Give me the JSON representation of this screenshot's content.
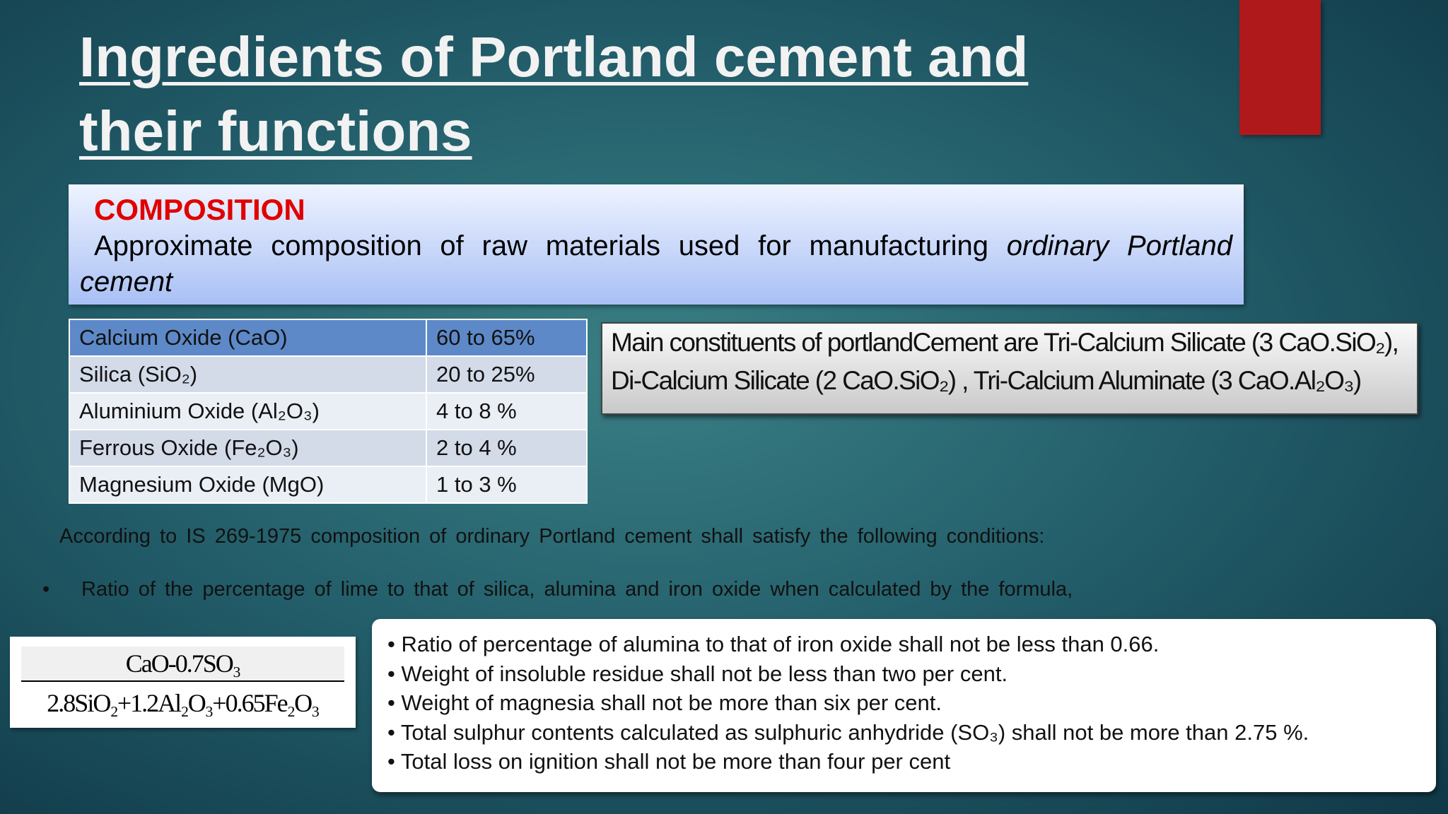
{
  "title": {
    "line1": "Ingredients of Portland cement and",
    "line2": "their functions"
  },
  "composition_box": {
    "heading": "COMPOSITION",
    "text": "Approximate composition of raw materials used for manufacturing",
    "text_italic": "ordinary Portland cement"
  },
  "table": {
    "rows": [
      [
        "Calcium Oxide (CaO)",
        "60 to 65%"
      ],
      [
        "Silica (SiO₂)",
        "20 to 25%"
      ],
      [
        "Aluminium Oxide (Al₂O₃)",
        "4 to 8 %"
      ],
      [
        "Ferrous Oxide (Fe₂O₃)",
        "2 to 4 %"
      ],
      [
        "Magnesium Oxide (MgO)",
        "1 to 3 %"
      ]
    ]
  },
  "constituents": {
    "line1": "Main constituents of portlandCement are Tri-Calcium Silicate (3 CaO.SiO₂),",
    "line2": "Di-Calcium Silicate (2 CaO.SiO₂) , Tri-Calcium Aluminate (3 CaO.Al₂O₃)"
  },
  "conditions_intro": "According to IS 269-1975 composition of ordinary Portland cement shall satisfy the following conditions:",
  "bullet": "Ratio of the percentage of lime to that of silica, alumina and iron oxide when calculated by the formula,",
  "formula": {
    "numerator": "CaO-0.7SO₃",
    "denominator": "2.8SiO₂+1.2Al₂O₃+0.65Fe₂O₃"
  },
  "conditions": [
    "• Ratio of percentage of alumina to that of iron oxide shall not be less than 0.66.",
    "• Weight of insoluble residue shall not be less than two per cent.",
    "• Weight of magnesia shall not be more than six per cent.",
    "• Total sulphur contents calculated as sulphuric anhydride (SO₃) shall not be more than 2.75 %.",
    "• Total loss on ignition shall not be more than four per cent"
  ]
}
